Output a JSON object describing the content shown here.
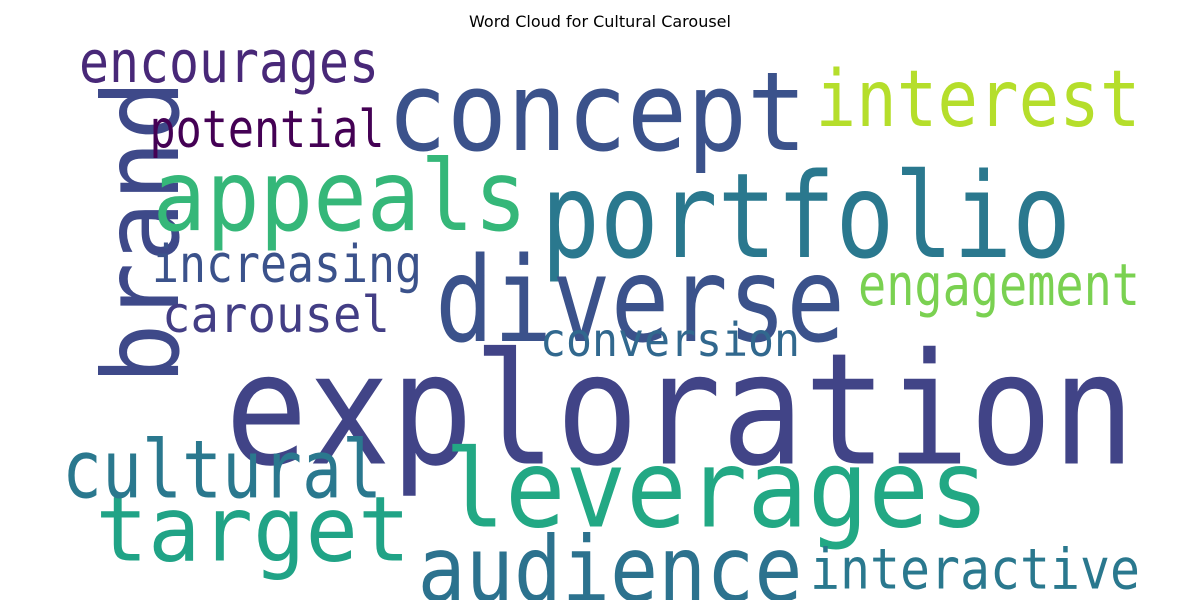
{
  "chart_data": {
    "type": "wordcloud",
    "title": "Word Cloud for Cultural Carousel",
    "words": [
      {
        "text": "exploration",
        "color": "#414487"
      },
      {
        "text": "concept",
        "color": "#3b528b"
      },
      {
        "text": "portfolio",
        "color": "#2a788e"
      },
      {
        "text": "diverse",
        "color": "#3b528b"
      },
      {
        "text": "brand",
        "color": "#3e4989"
      },
      {
        "text": "appeals",
        "color": "#35b779"
      },
      {
        "text": "leverages",
        "color": "#22a884"
      },
      {
        "text": "interest",
        "color": "#b5de2b"
      },
      {
        "text": "target",
        "color": "#20a386"
      },
      {
        "text": "audience",
        "color": "#2c728e"
      },
      {
        "text": "cultural",
        "color": "#2a788e"
      },
      {
        "text": "engagement",
        "color": "#7ad151"
      },
      {
        "text": "encourages",
        "color": "#482878"
      },
      {
        "text": "potential",
        "color": "#440154"
      },
      {
        "text": "increasing",
        "color": "#3b528b"
      },
      {
        "text": "carousel",
        "color": "#433e85"
      },
      {
        "text": "conversion",
        "color": "#31688e"
      },
      {
        "text": "interactive",
        "color": "#2a788e"
      }
    ]
  }
}
